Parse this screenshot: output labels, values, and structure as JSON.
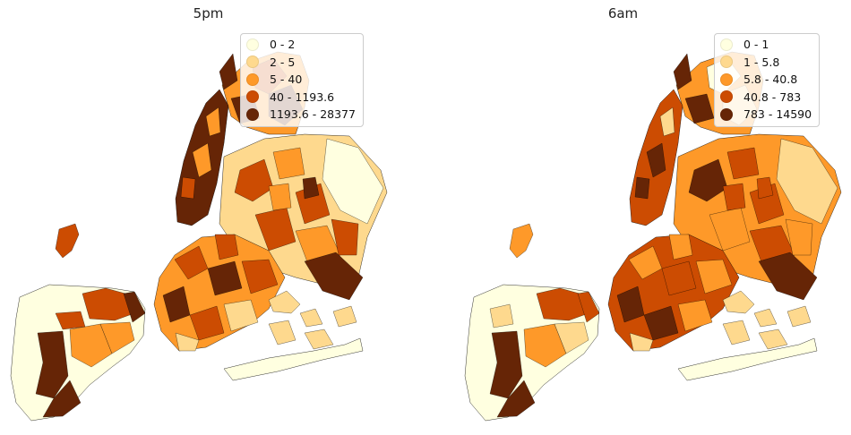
{
  "maps": [
    {
      "title": "5pm",
      "legend": [
        {
          "label": "0 - 2",
          "color": "#ffffe0"
        },
        {
          "label": "2 - 5",
          "color": "#fed98e"
        },
        {
          "label": "5 - 40",
          "color": "#fe9929"
        },
        {
          "label": "40 - 1193.6",
          "color": "#cc4c02"
        },
        {
          "label": "1193.6 - 28377",
          "color": "#662506"
        }
      ]
    },
    {
      "title": "6am",
      "legend": [
        {
          "label": "0 - 1",
          "color": "#ffffe0"
        },
        {
          "label": "1 - 5.8",
          "color": "#fed98e"
        },
        {
          "label": "5.8 - 40.8",
          "color": "#fe9929"
        },
        {
          "label": "40.8 - 783",
          "color": "#cc4c02"
        },
        {
          "label": "783 - 14590",
          "color": "#662506"
        }
      ]
    }
  ]
}
